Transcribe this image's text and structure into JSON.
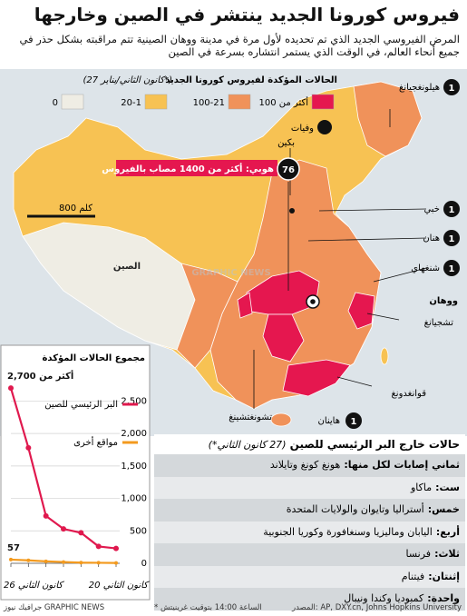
{
  "header": {
    "title": "فيروس كورونا الجديد ينتشر في الصين وخارجها",
    "subtitle": "المرض الفيروسي الجديد الذي تم تحديده لأول مرة في مدينة ووهان الصينية تتم مراقبته بشكل حذر في جميع أنحاء العالم، في الوقت الذي يستمر انتشاره بسرعة في الصين"
  },
  "map": {
    "title": "الحالات المؤكدة لفيروس كورونا الجديد",
    "date_note": "(27 كانون الثاني/يناير*)",
    "legend": [
      {
        "label": "أكثر من 100",
        "color": "#e5174f"
      },
      {
        "label": "100-21",
        "color": "#f0925a"
      },
      {
        "label": "20-1",
        "color": "#f7c253"
      },
      {
        "label": "0",
        "color": "#efede4"
      }
    ],
    "deaths_label": "وفيات",
    "country_label": "الصين",
    "scale_label": "800 كلم",
    "regions": [
      {
        "name": "هيلونغجيانغ",
        "deaths": 1
      },
      {
        "name": "بكين"
      },
      {
        "name": "خبي",
        "deaths": 1
      },
      {
        "name": "هنان",
        "deaths": 1
      },
      {
        "name": "شنغهاي",
        "deaths": 1
      },
      {
        "name": "ووهان"
      },
      {
        "name": "تشجيانغ"
      },
      {
        "name": "قوانغدونغ"
      },
      {
        "name": "هاينان",
        "deaths": 1
      },
      {
        "name": "تشونغتشينغ"
      }
    ],
    "hubei": {
      "label": "هوبي: أكثر من 1400 مصاب بالفيروس",
      "deaths": 76
    },
    "watermark": "GRAPHIC NEWS"
  },
  "chart_data": {
    "type": "line",
    "title": "مجموع الحالات المؤكدة",
    "categories": [
      "20 كانون الثاني",
      null,
      null,
      null,
      null,
      null,
      "26 كانون الثاني"
    ],
    "series": [
      {
        "name": "البر الرئيسي للصين",
        "color": "#e0194e",
        "values": [
          230,
          260,
          470,
          530,
          730,
          1780,
          2700
        ],
        "value_labels": [
          null,
          null,
          null,
          null,
          null,
          null,
          "أكثر من 2,700"
        ]
      },
      {
        "name": "مواقع أخرى",
        "color": "#f39a1e",
        "values": [
          5,
          8,
          10,
          20,
          30,
          45,
          57
        ],
        "value_labels": [
          null,
          null,
          null,
          null,
          null,
          null,
          "57"
        ]
      }
    ],
    "ylim": [
      0,
      2800
    ],
    "yticks": [
      0,
      500,
      {
        "value": 1000,
        "label": "1,000"
      },
      {
        "value": 1500,
        "label": "1,500"
      },
      {
        "value": 2000,
        "label": "2,000"
      },
      {
        "value": 2500,
        "label": "2,500"
      }
    ],
    "grid": true
  },
  "table": {
    "title": "حالات خارج البر الرئيسي للصين",
    "note": "(27 كانون الثاني*)",
    "rows": [
      [
        "ثماني إصابات لكل منها:",
        "هونغ كونغ وتايلاند"
      ],
      [
        "ست:",
        "ماكاو"
      ],
      [
        "خمس:",
        "أستراليا وتايوان والولايات المتحدة"
      ],
      [
        "أربع:",
        "اليابان وماليزيا وسنغافورة وكوريا الجنوبية"
      ],
      [
        "ثلاث:",
        "فرنسا"
      ],
      [
        "إثنتان:",
        "فيتنام"
      ],
      [
        "واحدة:",
        "كمبوديا وكندا ونيبال"
      ]
    ]
  },
  "footer": {
    "source": "المصدر: AP, DXY.cn, Johns Hopkins University",
    "time_note": "* الساعة 14:00 بتوقيت غرينيتش",
    "credit": "جرافيك نيوز GRAPHIC NEWS"
  }
}
